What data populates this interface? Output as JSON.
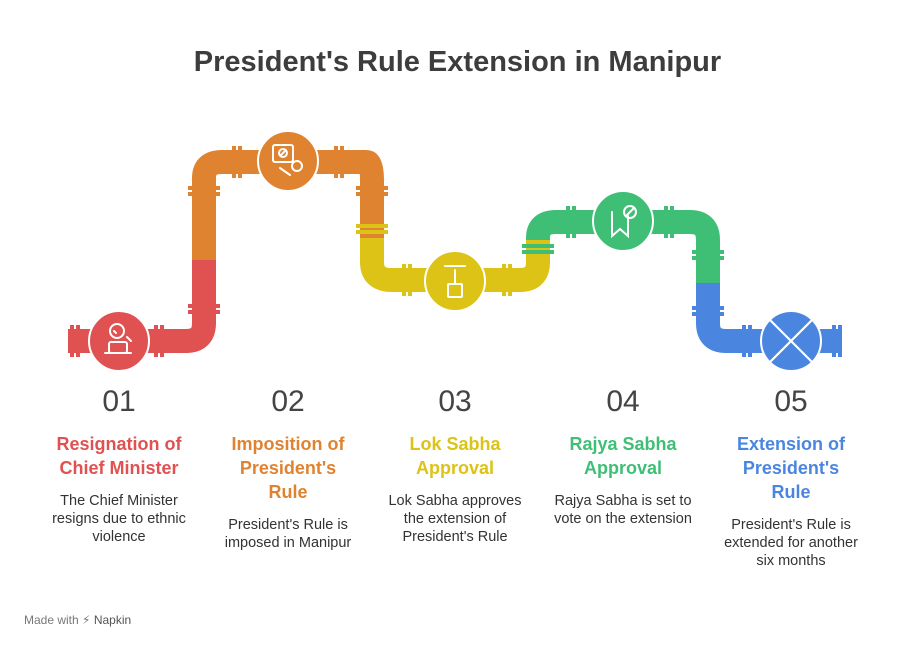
{
  "title": "President's Rule Extension in Manipur",
  "steps": [
    {
      "number": "01",
      "heading_line1": "Resignation of",
      "heading_line2": "Chief Minister",
      "heading_line3": "",
      "description": "The Chief Minister resigns due to ethnic violence",
      "color": "#e05251",
      "icon": "person-leaving-icon"
    },
    {
      "number": "02",
      "heading_line1": "Imposition of",
      "heading_line2": "President's",
      "heading_line3": "Rule",
      "description": "President's Rule is imposed in Manipur",
      "color": "#e08331",
      "icon": "government-order-icon"
    },
    {
      "number": "03",
      "heading_line1": "Lok Sabha",
      "heading_line2": "Approval",
      "heading_line3": "",
      "description": "Lok Sabha approves the extension of President's Rule",
      "color": "#dcc315",
      "icon": "upload-approval-icon"
    },
    {
      "number": "04",
      "heading_line1": "Rajya Sabha",
      "heading_line2": "Approval",
      "heading_line3": "",
      "description": "Rajya Sabha is set to vote on the extension",
      "color": "#3fbe76",
      "icon": "bookmark-vote-icon"
    },
    {
      "number": "05",
      "heading_line1": "Extension of",
      "heading_line2": "President's",
      "heading_line3": "Rule",
      "description": "President's Rule is extended for another six months",
      "color": "#4a86e0",
      "icon": "cross-icon"
    }
  ],
  "footer": {
    "made_with": "Made with",
    "brand": "Napkin"
  }
}
